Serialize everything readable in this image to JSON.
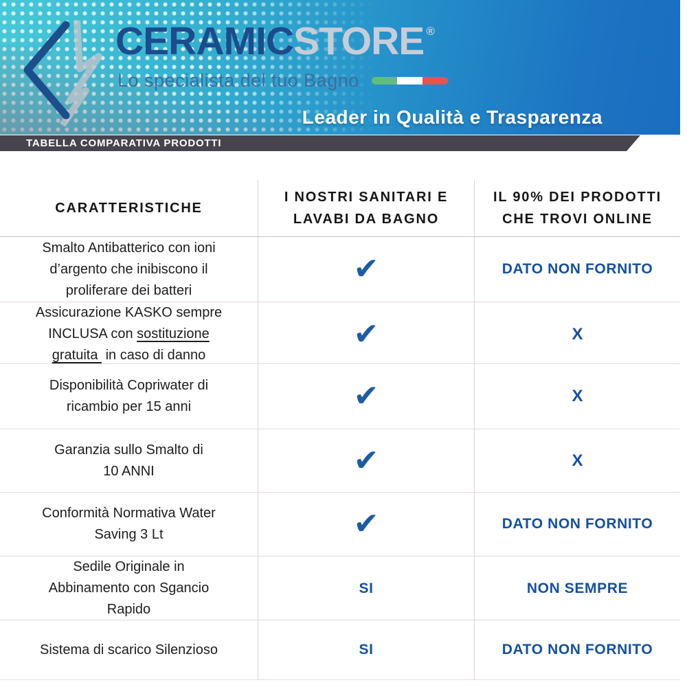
{
  "brand": {
    "name_primary": "CERAMIC",
    "name_secondary": "STORE",
    "registered": "®",
    "tagline": "Lo specialista del tuo Bagno",
    "slogan": "Leader in Qualità e Trasparenza"
  },
  "banner": {
    "title": "TABELLA COMPARATIVA PRODOTTI"
  },
  "table": {
    "headers": [
      {
        "lines": [
          "CARATTERISTICHE"
        ]
      },
      {
        "lines": [
          "I NOSTRI SANITARI E",
          "LAVABI DA BAGNO"
        ]
      },
      {
        "lines": [
          "IL 90% DEI PRODOTTI",
          "CHE TROVI ONLINE"
        ]
      }
    ],
    "check_symbol": "✔",
    "rows": [
      {
        "feature_lines": [
          [
            {
              "t": "Smalto Antibatterico con ioni"
            }
          ],
          [
            {
              "t": "d’argento che inibiscono il"
            }
          ],
          [
            {
              "t": "proliferare dei batteri"
            }
          ]
        ],
        "ours": {
          "check": true
        },
        "online": {
          "text": "DATO NON FORNITO"
        }
      },
      {
        "feature_lines": [
          [
            {
              "t": "Assicurazione KASKO sempre"
            }
          ],
          [
            {
              "t": "INCLUSA con "
            },
            {
              "t": "sostituzione",
              "u": true
            }
          ],
          [
            {
              "t": "gratuita ",
              "u": true
            },
            {
              "t": " in caso di danno"
            }
          ]
        ],
        "ours": {
          "check": true
        },
        "online": {
          "text": "X"
        }
      },
      {
        "feature_lines": [
          [
            {
              "t": "Disponibilità Copriwater di"
            }
          ],
          [
            {
              "t": "ricambio per 15 anni"
            }
          ]
        ],
        "ours": {
          "check": true
        },
        "online": {
          "text": "X"
        }
      },
      {
        "feature_lines": [
          [
            {
              "t": "Garanzia sullo Smalto di"
            }
          ],
          [
            {
              "t": "10 ANNI"
            }
          ]
        ],
        "ours": {
          "check": true
        },
        "online": {
          "text": "X"
        }
      },
      {
        "feature_lines": [
          [
            {
              "t": "Conformità Normativa Water"
            }
          ],
          [
            {
              "t": "Saving 3 Lt"
            }
          ]
        ],
        "ours": {
          "check": true
        },
        "online": {
          "text": "DATO NON FORNITO"
        }
      },
      {
        "feature_lines": [
          [
            {
              "t": "Sedile Originale in"
            }
          ],
          [
            {
              "t": "Abbinamento con Sgancio"
            }
          ],
          [
            {
              "t": "Rapido"
            }
          ]
        ],
        "ours": {
          "text": "SI"
        },
        "online": {
          "text": "NON SEMPRE"
        }
      },
      {
        "feature_lines": [
          [
            {
              "t": "Sistema di scarico Silenzioso"
            }
          ]
        ],
        "ours": {
          "text": "SI"
        },
        "online": {
          "text": "DATO NON FORNITO"
        }
      }
    ]
  },
  "chart_data": {
    "type": "table",
    "title": "TABELLA COMPARATIVA PRODOTTI",
    "columns": [
      "CARATTERISTICHE",
      "I NOSTRI SANITARI E LAVABI DA BAGNO",
      "IL 90% DEI PRODOTTI CHE TROVI ONLINE"
    ],
    "rows": [
      [
        "Smalto Antibatterico con ioni d’argento che inibiscono il proliferare dei batteri",
        "✔",
        "DATO NON FORNITO"
      ],
      [
        "Assicurazione KASKO sempre INCLUSA con sostituzione gratuita in caso di danno",
        "✔",
        "X"
      ],
      [
        "Disponibilità Copriwater di ricambio per 15 anni",
        "✔",
        "X"
      ],
      [
        "Garanzia sullo Smalto di 10 ANNI",
        "✔",
        "X"
      ],
      [
        "Conformità Normativa Water Saving 3 Lt",
        "✔",
        "DATO NON FORNITO"
      ],
      [
        "Sedile Originale in Abbinamento con Sgancio Rapido",
        "SI",
        "NON SEMPRE"
      ],
      [
        "Sistema di scarico Silenzioso",
        "SI",
        "DATO NON FORNITO"
      ]
    ]
  },
  "colors": {
    "accent_blue": "#15509f",
    "check_blue": "#1d5ca3",
    "brand_navy": "#1c4c8c",
    "brand_silver": "#c6cdd9",
    "ribbon_bg": "#47444d",
    "header_gradient_left": "#46c9d8",
    "header_gradient_right": "#1a6ec0",
    "flag_green": "#62bd7c",
    "flag_white": "#ffffff",
    "flag_red": "#e8534a"
  }
}
